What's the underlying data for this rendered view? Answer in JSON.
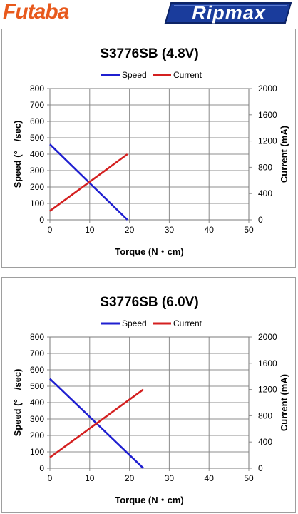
{
  "brands": {
    "left_logo": "Futaba",
    "right_logo": "Ripmax",
    "colors": {
      "futaba": "#e8591c",
      "ripmax_blue": "#1a3c9c"
    }
  },
  "chart_data": [
    {
      "type": "line",
      "title": "S3776SB (4.8V)",
      "xlabel": "Torque (N・cm)",
      "ylabel": "Speed (°　/sec)",
      "y2label": "Current (mA)",
      "xlim": [
        0,
        50
      ],
      "ylim": [
        0,
        800
      ],
      "y2lim": [
        0,
        2000
      ],
      "x_ticks": [
        "0",
        "10",
        "20",
        "30",
        "40",
        "50"
      ],
      "y_ticks": [
        "0",
        "100",
        "200",
        "300",
        "400",
        "500",
        "600",
        "700",
        "800"
      ],
      "y2_ticks": [
        "0",
        "400",
        "800",
        "1200",
        "1600",
        "2000"
      ],
      "grid": true,
      "legend_position": "top",
      "series": [
        {
          "name": "Speed",
          "axis": "left",
          "color": "#1f1fd0",
          "x": [
            0,
            19.5
          ],
          "y": [
            460,
            0
          ]
        },
        {
          "name": "Current",
          "axis": "right",
          "color": "#d42020",
          "x": [
            0,
            19.5
          ],
          "y": [
            135,
            1000
          ]
        }
      ]
    },
    {
      "type": "line",
      "title": "S3776SB (6.0V)",
      "xlabel": "Torque (N・cm)",
      "ylabel": "Speed (°　/sec)",
      "y2label": "Current (mA)",
      "xlim": [
        0,
        50
      ],
      "ylim": [
        0,
        800
      ],
      "y2lim": [
        0,
        2000
      ],
      "x_ticks": [
        "0",
        "10",
        "20",
        "30",
        "40",
        "50"
      ],
      "y_ticks": [
        "0",
        "100",
        "200",
        "300",
        "400",
        "500",
        "600",
        "700",
        "800"
      ],
      "y2_ticks": [
        "0",
        "400",
        "800",
        "1200",
        "1600",
        "2000"
      ],
      "grid": true,
      "legend_position": "top",
      "series": [
        {
          "name": "Speed",
          "axis": "left",
          "color": "#1f1fd0",
          "x": [
            0,
            23.5
          ],
          "y": [
            545,
            0
          ]
        },
        {
          "name": "Current",
          "axis": "right",
          "color": "#d42020",
          "x": [
            0,
            23.5
          ],
          "y": [
            165,
            1200
          ]
        }
      ]
    }
  ]
}
